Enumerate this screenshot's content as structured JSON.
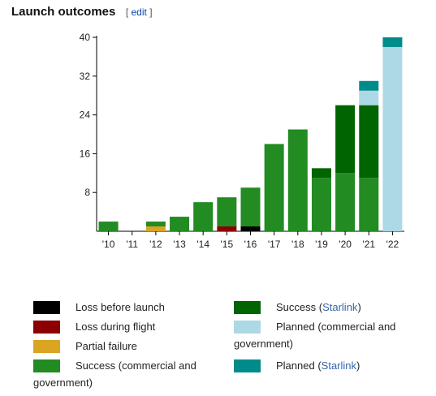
{
  "heading": {
    "title": "Launch outcomes",
    "edit_open": "[",
    "edit_label": "edit",
    "edit_close": "]"
  },
  "chart_data": {
    "type": "bar",
    "stacked": true,
    "categories": [
      "'10",
      "'11",
      "'12",
      "'13",
      "'14",
      "'15",
      "'16",
      "'17",
      "'18",
      "'19",
      "'20",
      "'21",
      "'22"
    ],
    "ylim": [
      0,
      40
    ],
    "yticks": [
      8,
      16,
      24,
      32,
      40
    ],
    "series": [
      {
        "name": "Loss before launch",
        "color": "#000000",
        "values": [
          0,
          0,
          0,
          0,
          0,
          0,
          1,
          0,
          0,
          0,
          0,
          0,
          0
        ]
      },
      {
        "name": "Loss during flight",
        "color": "#8b0000",
        "values": [
          0,
          0,
          0,
          0,
          0,
          1,
          0,
          0,
          0,
          0,
          0,
          0,
          0
        ]
      },
      {
        "name": "Partial failure",
        "color": "#daa520",
        "values": [
          0,
          0,
          1,
          0,
          0,
          0,
          0,
          0,
          0,
          0,
          0,
          0,
          0
        ]
      },
      {
        "name": "Success (commercial and government)",
        "color": "#228b22",
        "values": [
          2,
          0,
          1,
          3,
          6,
          6,
          8,
          18,
          21,
          11,
          12,
          11,
          0
        ]
      },
      {
        "name": "Success (Starlink)",
        "color": "#006400",
        "values": [
          0,
          0,
          0,
          0,
          0,
          0,
          0,
          0,
          0,
          2,
          14,
          15,
          0
        ]
      },
      {
        "name": "Planned (commercial and government)",
        "color": "#add8e6",
        "values": [
          0,
          0,
          0,
          0,
          0,
          0,
          0,
          0,
          0,
          0,
          0,
          3,
          38
        ]
      },
      {
        "name": "Planned (Starlink)",
        "color": "#008b8b",
        "values": [
          0,
          0,
          0,
          0,
          0,
          0,
          0,
          0,
          0,
          0,
          0,
          2,
          2
        ]
      }
    ]
  },
  "legend": {
    "loss_before": "Loss before launch",
    "loss_during": "Loss during flight",
    "partial": "Partial failure",
    "success_cg_1": "Success (commercial and",
    "success_cg_2": "government)",
    "success_sl_pre": "Success (",
    "success_sl_link": "Starlink",
    "success_sl_post": ")",
    "planned_cg_1": "Planned (commercial and",
    "planned_cg_2": "government)",
    "planned_sl_pre": "Planned (",
    "planned_sl_link": "Starlink",
    "planned_sl_post": ")"
  }
}
